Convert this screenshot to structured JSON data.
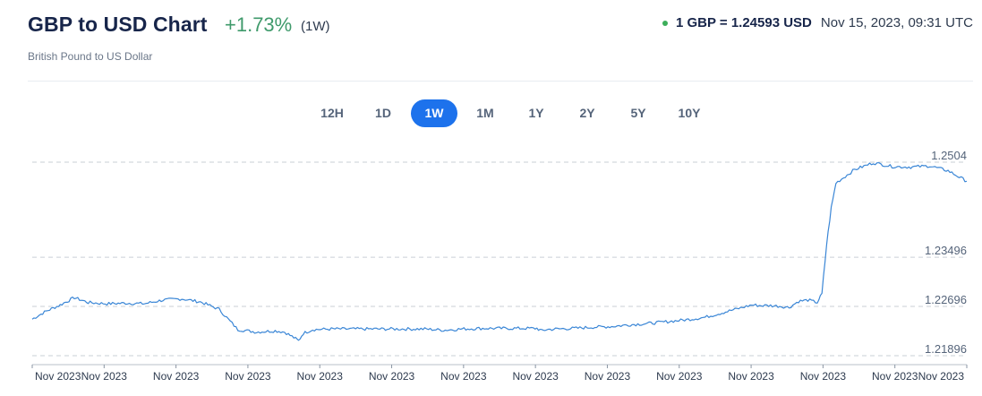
{
  "header": {
    "title": "GBP to USD Chart",
    "change": "+1.73%",
    "period": "(1W)",
    "subtitle": "British Pound to US Dollar",
    "rate_text": "1 GBP = 1.24593 USD",
    "timestamp": "Nov 15, 2023, 09:31 UTC"
  },
  "range_buttons": [
    {
      "label": "12H",
      "active": false
    },
    {
      "label": "1D",
      "active": false
    },
    {
      "label": "1W",
      "active": true
    },
    {
      "label": "1M",
      "active": false
    },
    {
      "label": "1Y",
      "active": false
    },
    {
      "label": "2Y",
      "active": false
    },
    {
      "label": "5Y",
      "active": false
    },
    {
      "label": "10Y",
      "active": false
    }
  ],
  "colors": {
    "accent": "#1d72ec",
    "line": "#3a86d6",
    "positive": "#3f9a6b",
    "live": "#3cae5a"
  },
  "chart_data": {
    "type": "line",
    "title": "",
    "xlabel": "",
    "ylabel": "",
    "ylim": [
      1.21896,
      1.2504
    ],
    "y_ticks": [
      1.21896,
      1.22696,
      1.23496,
      1.2504
    ],
    "y_tick_labels": [
      "1.21896",
      "1.22696",
      "1.23496",
      "1.2504"
    ],
    "x_tick_labels": [
      "Nov 2023",
      "Nov 2023",
      "Nov 2023",
      "Nov 2023",
      "Nov 2023",
      "Nov 2023",
      "Nov 2023",
      "Nov 2023",
      "Nov 2023",
      "Nov 2023",
      "Nov 2023",
      "Nov 2023",
      "Nov 2023",
      "Nov 2023"
    ],
    "grid": true,
    "series": [
      {
        "x": [
          0,
          1.5,
          3,
          4.5,
          6,
          8,
          10,
          12,
          14,
          16,
          18,
          20,
          22,
          24,
          26,
          27,
          28,
          28.5,
          29,
          30,
          32,
          34,
          36,
          38,
          40,
          42,
          44,
          46,
          48,
          50,
          52,
          54,
          54.5,
          55,
          56,
          58,
          60,
          62,
          64,
          66,
          68,
          70,
          72,
          74,
          76,
          77,
          78,
          79,
          80,
          81,
          82,
          83,
          84,
          84.5,
          85,
          85.5,
          86,
          88,
          90,
          92,
          94,
          96,
          98,
          100
        ],
        "y": [
          1.2249,
          1.2262,
          1.2272,
          1.2284,
          1.2276,
          1.2274,
          1.2275,
          1.2274,
          1.228,
          1.2282,
          1.2277,
          1.2265,
          1.2232,
          1.2228,
          1.223,
          1.2228,
          1.2219,
          1.2214,
          1.2226,
          1.2232,
          1.2233,
          1.2233,
          1.2233,
          1.2233,
          1.2233,
          1.2233,
          1.2231,
          1.2233,
          1.2234,
          1.2234,
          1.2234,
          1.2234,
          1.223,
          1.2232,
          1.2233,
          1.2234,
          1.2236,
          1.2237,
          1.224,
          1.2242,
          1.2245,
          1.2248,
          1.2252,
          1.226,
          1.2268,
          1.2272,
          1.2271,
          1.2271,
          1.227,
          1.2268,
          1.2278,
          1.228,
          1.2276,
          1.229,
          1.237,
          1.243,
          1.247,
          1.2492,
          1.2503,
          1.2497,
          1.2496,
          1.2498,
          1.249,
          1.2473
        ]
      }
    ]
  }
}
